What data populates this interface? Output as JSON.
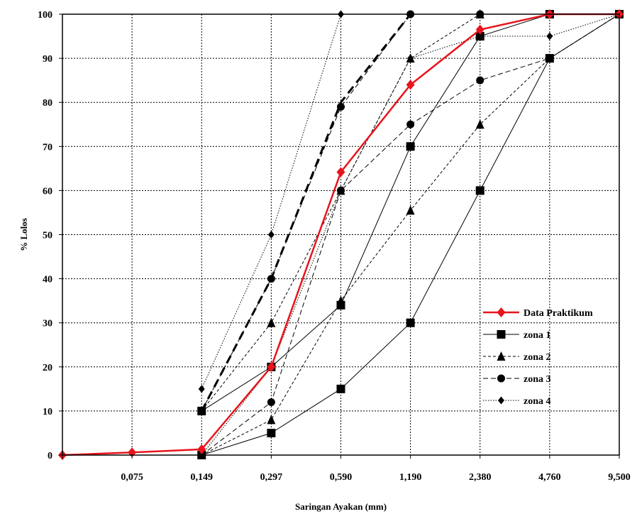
{
  "chart_data": {
    "type": "line",
    "xlabel": "Saringan Ayakan (mm)",
    "ylabel": "% Lolos",
    "categories": [
      "",
      "0,075",
      "0,149",
      "0,297",
      "0,590",
      "1,190",
      "2,380",
      "4,760",
      "9,500"
    ],
    "ylim": [
      0,
      100
    ],
    "yticks": [
      0,
      10,
      20,
      30,
      40,
      50,
      60,
      70,
      80,
      90,
      100
    ],
    "grid": true,
    "legend_position": "bottom-right",
    "colors": {
      "data_praktikum": "#e8141c",
      "zones": "#000000"
    },
    "series": [
      {
        "name": "Data Praktikum",
        "style": "red-diamond-thick",
        "points": [
          [
            0,
            0
          ],
          [
            1,
            0.6
          ],
          [
            2,
            1.3
          ],
          [
            3,
            20
          ],
          [
            4,
            64.2
          ],
          [
            5,
            84
          ],
          [
            6,
            96.5
          ],
          [
            7,
            100
          ],
          [
            8,
            100
          ]
        ]
      },
      {
        "name": "zona 1",
        "style": "solid-square",
        "points": [
          [
            2,
            10
          ],
          [
            3,
            20
          ],
          [
            4,
            34
          ],
          [
            5,
            70
          ],
          [
            6,
            95
          ],
          [
            7,
            100
          ],
          [
            8,
            100
          ]
        ]
      },
      {
        "name": "",
        "style": "solid-square",
        "points": [
          [
            2,
            0
          ],
          [
            3,
            5
          ],
          [
            4,
            15
          ],
          [
            5,
            30
          ],
          [
            6,
            60
          ],
          [
            7,
            90
          ],
          [
            8,
            100
          ]
        ]
      },
      {
        "name": "zona 2",
        "style": "dashed-triangle",
        "points": [
          [
            2,
            10
          ],
          [
            3,
            30
          ],
          [
            4,
            60
          ],
          [
            5,
            90
          ],
          [
            6,
            100
          ],
          [
            7,
            100
          ],
          [
            8,
            100
          ]
        ]
      },
      {
        "name": "",
        "style": "dashed-triangle",
        "points": [
          [
            2,
            0
          ],
          [
            3,
            8
          ],
          [
            4,
            35
          ],
          [
            5,
            55.5
          ],
          [
            6,
            75
          ],
          [
            7,
            90
          ],
          [
            8,
            100
          ]
        ]
      },
      {
        "name": "zona 3",
        "style": "dashed-circle",
        "points": [
          [
            2,
            10
          ],
          [
            3,
            40
          ],
          [
            4,
            79
          ],
          [
            5,
            100
          ],
          [
            6,
            100
          ],
          [
            7,
            100
          ],
          [
            8,
            100
          ]
        ]
      },
      {
        "name": "",
        "style": "dashed-circle",
        "points": [
          [
            2,
            0
          ],
          [
            3,
            12
          ],
          [
            4,
            60
          ],
          [
            5,
            75
          ],
          [
            6,
            85
          ],
          [
            7,
            90
          ],
          [
            8,
            100
          ]
        ]
      },
      {
        "name": "zona 4",
        "style": "dotted-diamond",
        "points": [
          [
            2,
            15
          ],
          [
            3,
            50
          ],
          [
            4,
            100
          ],
          [
            5,
            100
          ],
          [
            6,
            100
          ],
          [
            7,
            100
          ],
          [
            8,
            100
          ]
        ]
      },
      {
        "name": "",
        "style": "dotted-diamond",
        "points": [
          [
            2,
            0
          ],
          [
            3,
            20
          ],
          [
            4,
            60
          ],
          [
            5,
            90
          ],
          [
            6,
            95
          ],
          [
            7,
            95
          ],
          [
            8,
            100
          ]
        ]
      },
      {
        "name": "",
        "style": "thick-dashed",
        "points": [
          [
            2,
            10
          ],
          [
            3,
            40
          ],
          [
            4,
            80
          ],
          [
            5,
            100
          ]
        ]
      }
    ]
  }
}
